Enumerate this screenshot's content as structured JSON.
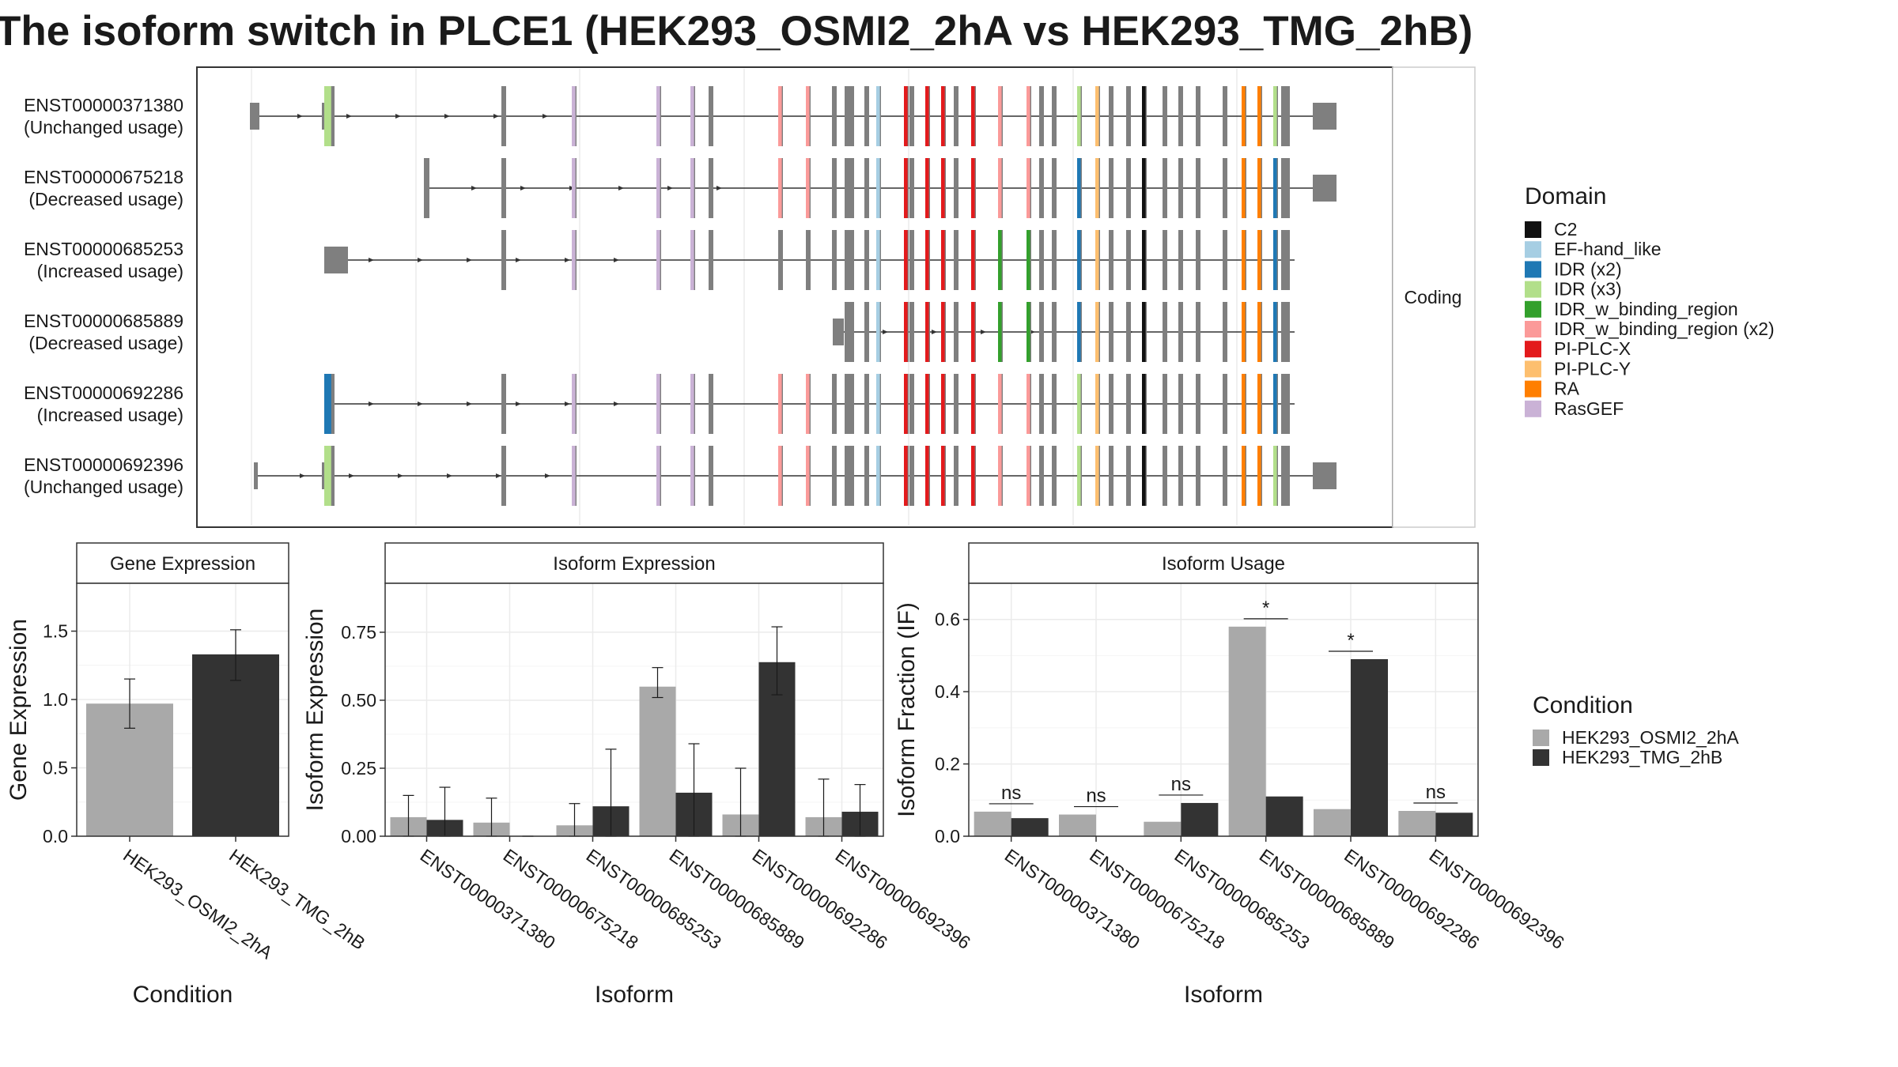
{
  "figure": {
    "title": "The isoform switch in PLCE1 (HEK293_OSMI2_2hA vs HEK293_TMG_2hB)"
  },
  "chart_data": [
    {
      "type": "gene_structure",
      "strip_label": "Coding",
      "transcripts": [
        {
          "id": "ENST00000371380",
          "label": "(Unchanged usage)"
        },
        {
          "id": "ENST00000675218",
          "label": "(Decreased usage)"
        },
        {
          "id": "ENST00000685253",
          "label": "(Increased usage)"
        },
        {
          "id": "ENST00000685889",
          "label": "(Decreased usage)"
        },
        {
          "id": "ENST00000692286",
          "label": "(Increased usage)"
        },
        {
          "id": "ENST00000692396",
          "label": "(Unchanged usage)"
        }
      ],
      "legend": {
        "title": "Domain",
        "entries": [
          {
            "name": "C2",
            "color": "#111111"
          },
          {
            "name": "EF-hand_like",
            "color": "#a6cee3"
          },
          {
            "name": "IDR (x2)",
            "color": "#1f78b4"
          },
          {
            "name": "IDR (x3)",
            "color": "#b2df8a"
          },
          {
            "name": "IDR_w_binding_region",
            "color": "#33a02c"
          },
          {
            "name": "IDR_w_binding_region (x2)",
            "color": "#fb9a99"
          },
          {
            "name": "PI-PLC-X",
            "color": "#e31a1c"
          },
          {
            "name": "PI-PLC-Y",
            "color": "#fdbf6f"
          },
          {
            "name": "RA",
            "color": "#ff7f00"
          },
          {
            "name": "RasGEF",
            "color": "#cab2d6"
          }
        ]
      }
    },
    {
      "type": "bar",
      "strip_title": "Gene Expression",
      "xlabel": "Condition",
      "ylabel": "Gene Expression",
      "ylim": [
        0,
        1.85
      ],
      "yticks": [
        "0.0",
        "0.5",
        "1.0",
        "1.5"
      ],
      "categories": [
        "HEK293_OSMI2_2hA",
        "HEK293_TMG_2hB"
      ],
      "values": [
        0.97,
        1.33
      ],
      "err_low": [
        0.79,
        1.14
      ],
      "err_high": [
        1.15,
        1.51
      ]
    },
    {
      "type": "bar",
      "strip_title": "Isoform Expression",
      "xlabel": "Isoform",
      "ylabel": "Isoform Expression",
      "ylim": [
        0,
        0.93
      ],
      "yticks": [
        "0.00",
        "0.25",
        "0.50",
        "0.75"
      ],
      "categories": [
        "ENST00000371380",
        "ENST00000675218",
        "ENST00000685253",
        "ENST00000685889",
        "ENST00000692286",
        "ENST00000692396"
      ],
      "series": [
        {
          "condition": "HEK293_OSMI2_2hA",
          "values": [
            0.07,
            0.05,
            0.04,
            0.55,
            0.08,
            0.07
          ],
          "err_low": [
            0.0,
            0.0,
            0.0,
            0.51,
            0.0,
            0.0
          ],
          "err_high": [
            0.15,
            0.14,
            0.12,
            0.62,
            0.25,
            0.21
          ]
        },
        {
          "condition": "HEK293_TMG_2hB",
          "values": [
            0.06,
            0.0,
            0.11,
            0.16,
            0.64,
            0.09
          ],
          "err_low": [
            0.0,
            0.0,
            0.0,
            0.0,
            0.52,
            0.0
          ],
          "err_high": [
            0.18,
            0.0,
            0.32,
            0.34,
            0.77,
            0.19
          ]
        }
      ]
    },
    {
      "type": "bar",
      "strip_title": "Isoform Usage",
      "xlabel": "Isoform",
      "ylabel": "Isoform Fraction (IF)",
      "ylim": [
        0,
        0.7
      ],
      "yticks": [
        "0.0",
        "0.2",
        "0.4",
        "0.6"
      ],
      "categories": [
        "ENST00000371380",
        "ENST00000675218",
        "ENST00000685253",
        "ENST00000685889",
        "ENST00000692286",
        "ENST00000692396"
      ],
      "series": [
        {
          "condition": "HEK293_OSMI2_2hA",
          "values": [
            0.068,
            0.06,
            0.04,
            0.58,
            0.075,
            0.07
          ]
        },
        {
          "condition": "HEK293_TMG_2hB",
          "values": [
            0.05,
            0.0,
            0.092,
            0.11,
            0.49,
            0.065
          ]
        }
      ],
      "significance": [
        "ns",
        "ns",
        "ns",
        "*",
        "*",
        "ns"
      ]
    }
  ],
  "condition_legend": {
    "title": "Condition",
    "entries": [
      {
        "name": "HEK293_OSMI2_2hA",
        "color": "#a9a9a9"
      },
      {
        "name": "HEK293_TMG_2hB",
        "color": "#333333"
      }
    ]
  }
}
